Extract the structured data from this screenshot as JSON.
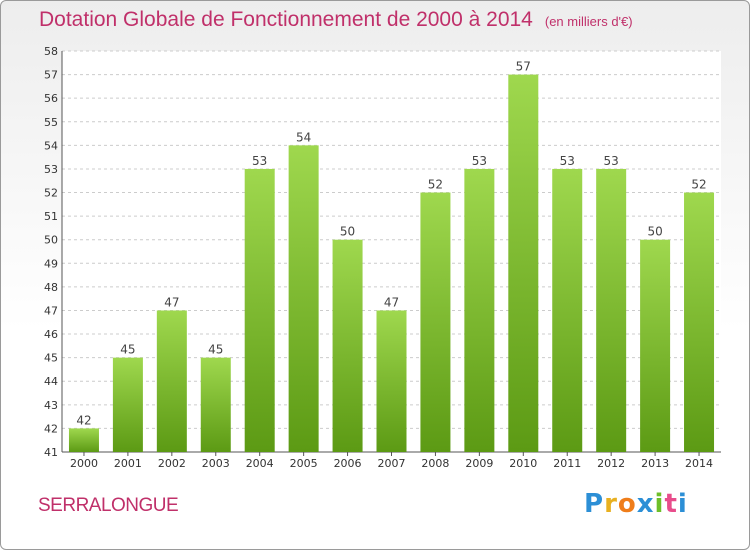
{
  "chart_data": {
    "type": "bar",
    "title": "Dotation Globale de Fonctionnement de 2000 à 2014",
    "subtitle": "(en milliers d'€)",
    "categories": [
      "2000",
      "2001",
      "2002",
      "2003",
      "2004",
      "2005",
      "2006",
      "2007",
      "2008",
      "2009",
      "2010",
      "2011",
      "2012",
      "2013",
      "2014"
    ],
    "values": [
      42,
      45,
      47,
      45,
      53,
      54,
      50,
      47,
      52,
      53,
      57,
      53,
      53,
      50,
      52
    ],
    "ylim": [
      41,
      58
    ],
    "yticks": [
      41,
      42,
      43,
      44,
      45,
      46,
      47,
      48,
      49,
      50,
      51,
      52,
      53,
      54,
      55,
      56,
      57,
      58
    ],
    "grid": true,
    "bar_color": "#7cbf2e",
    "xlabel": "",
    "ylabel": ""
  },
  "commune": "SERRALONGUE",
  "logo": {
    "letters": [
      "P",
      "r",
      "o",
      "x",
      "i",
      "t",
      "i"
    ],
    "colors": [
      "#2c8fd6",
      "#e8b020",
      "#ef7d1a",
      "#2c8fd6",
      "#6dbf2a",
      "#e84c8b",
      "#2c8fd6"
    ]
  },
  "colors": {
    "title": "#c0306a",
    "grid": "#cccccc"
  }
}
